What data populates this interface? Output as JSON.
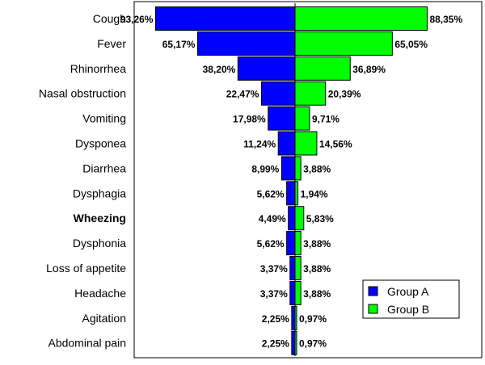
{
  "chart_data": {
    "type": "bar",
    "orientation": "horizontal-butterfly",
    "categories": [
      "Cough",
      "Fever",
      "Rhinorrhea",
      "Nasal obstruction",
      "Vomiting",
      "Dysponea",
      "Diarrhea",
      "Dysphagia",
      "Wheezing",
      "Dysphonia",
      "Loss of appetite",
      "Headache",
      "Agitation",
      "Abdominal pain"
    ],
    "bold_categories": [
      "Wheezing"
    ],
    "series": [
      {
        "name": "Group A",
        "side": "left",
        "color": "#0000ff",
        "values": [
          93.26,
          65.17,
          38.2,
          22.47,
          17.98,
          11.24,
          8.99,
          5.62,
          4.49,
          5.62,
          3.37,
          3.37,
          2.25,
          2.25
        ],
        "labels": [
          "93,26%",
          "65,17%",
          "38,20%",
          "22,47%",
          "17,98%",
          "11,24%",
          "8,99%",
          "5,62%",
          "4,49%",
          "5,62%",
          "3,37%",
          "3,37%",
          "2,25%",
          "2,25%"
        ]
      },
      {
        "name": "Group B",
        "side": "right",
        "color": "#00ff00",
        "values": [
          88.35,
          65.05,
          36.89,
          20.39,
          9.71,
          14.56,
          3.88,
          1.94,
          5.83,
          3.88,
          3.88,
          3.88,
          0.97,
          0.97
        ],
        "labels": [
          "88,35%",
          "65,05%",
          "36,89%",
          "20,39%",
          "9,71%",
          "14,56%",
          "3,88%",
          "1,94%",
          "5,83%",
          "3,88%",
          "3,88%",
          "3,88%",
          "0,97%",
          "0,97%"
        ]
      }
    ],
    "legend": {
      "position": "bottom-right"
    },
    "grid": false
  }
}
